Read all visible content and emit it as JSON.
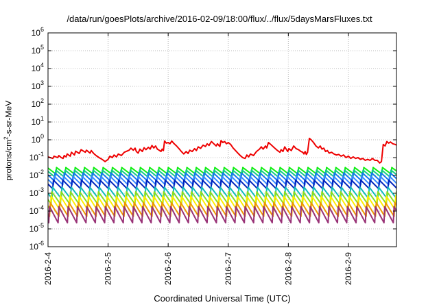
{
  "chart_data": {
    "type": "line",
    "title": "/data/run/goesPlots/archive/2016-02-09/18:00/flux/../flux/5daysMarsFluxes.txt",
    "xlabel": "Coordinated Universal Time (UTC)",
    "ylabel": {
      "pre": "protons/cm",
      "sup": "2",
      "post": "-s-sr-MeV"
    },
    "yscale": "log",
    "ylim": [
      1e-06,
      1000000.0
    ],
    "xlim": [
      0,
      5.8
    ],
    "grid": true,
    "x_ticks": [
      {
        "x": 0,
        "label": "2016-2-4"
      },
      {
        "x": 1,
        "label": "2016-2-5"
      },
      {
        "x": 2,
        "label": "2016-2-6"
      },
      {
        "x": 3,
        "label": "2016-2-7"
      },
      {
        "x": 4,
        "label": "2016-2-8"
      },
      {
        "x": 5,
        "label": "2016-2-9"
      }
    ],
    "y_ticks": [
      {
        "exp": -6,
        "base": "10",
        "sup": "-6"
      },
      {
        "exp": -5,
        "base": "10",
        "sup": "-5"
      },
      {
        "exp": -4,
        "base": "10",
        "sup": "-4"
      },
      {
        "exp": -3,
        "base": "10",
        "sup": "-3"
      },
      {
        "exp": -2,
        "base": "10",
        "sup": "-2"
      },
      {
        "exp": -1,
        "base": "10",
        "sup": "-1"
      },
      {
        "exp": 0,
        "base": "10",
        "sup": "0"
      },
      {
        "exp": 1,
        "base": "10",
        "sup": "1"
      },
      {
        "exp": 2,
        "base": "10",
        "sup": "2"
      },
      {
        "exp": 3,
        "base": "10",
        "sup": "3"
      },
      {
        "exp": 4,
        "base": "10",
        "sup": "4"
      },
      {
        "exp": 5,
        "base": "10",
        "sup": "5"
      },
      {
        "exp": 6,
        "base": "10",
        "sup": "6"
      }
    ],
    "sawtooth_period_days": 0.155,
    "series": [
      {
        "color": "#ee0000",
        "width": 2,
        "points": [
          [
            0.0,
            0.11
          ],
          [
            0.08,
            0.09
          ],
          [
            0.1,
            0.12
          ],
          [
            0.16,
            0.1
          ],
          [
            0.18,
            0.13
          ],
          [
            0.22,
            0.1
          ],
          [
            0.25,
            0.09
          ],
          [
            0.27,
            0.13
          ],
          [
            0.3,
            0.11
          ],
          [
            0.32,
            0.16
          ],
          [
            0.37,
            0.12
          ],
          [
            0.39,
            0.2
          ],
          [
            0.44,
            0.14
          ],
          [
            0.46,
            0.23
          ],
          [
            0.52,
            0.17
          ],
          [
            0.55,
            0.28
          ],
          [
            0.62,
            0.2
          ],
          [
            0.64,
            0.26
          ],
          [
            0.7,
            0.18
          ],
          [
            0.72,
            0.25
          ],
          [
            0.76,
            0.17
          ],
          [
            0.8,
            0.13
          ],
          [
            0.85,
            0.1
          ],
          [
            0.9,
            0.08
          ],
          [
            0.95,
            0.06
          ],
          [
            1.0,
            0.08
          ],
          [
            1.03,
            0.12
          ],
          [
            1.07,
            0.1
          ],
          [
            1.1,
            0.14
          ],
          [
            1.14,
            0.11
          ],
          [
            1.17,
            0.16
          ],
          [
            1.22,
            0.13
          ],
          [
            1.27,
            0.2
          ],
          [
            1.35,
            0.26
          ],
          [
            1.38,
            0.34
          ],
          [
            1.42,
            0.26
          ],
          [
            1.45,
            0.34
          ],
          [
            1.47,
            0.22
          ],
          [
            1.5,
            0.18
          ],
          [
            1.53,
            0.3
          ],
          [
            1.57,
            0.22
          ],
          [
            1.6,
            0.36
          ],
          [
            1.63,
            0.28
          ],
          [
            1.67,
            0.38
          ],
          [
            1.7,
            0.3
          ],
          [
            1.73,
            0.48
          ],
          [
            1.76,
            0.35
          ],
          [
            1.79,
            0.45
          ],
          [
            1.82,
            0.3
          ],
          [
            1.85,
            0.26
          ],
          [
            1.88,
            0.22
          ],
          [
            1.9,
            0.3
          ],
          [
            1.92,
            0.25
          ],
          [
            1.94,
            0.85
          ],
          [
            1.97,
            0.65
          ],
          [
            2.0,
            0.7
          ],
          [
            2.03,
            0.6
          ],
          [
            2.06,
            0.85
          ],
          [
            2.1,
            0.6
          ],
          [
            2.14,
            0.45
          ],
          [
            2.18,
            0.32
          ],
          [
            2.22,
            0.22
          ],
          [
            2.26,
            0.16
          ],
          [
            2.3,
            0.22
          ],
          [
            2.33,
            0.17
          ],
          [
            2.36,
            0.26
          ],
          [
            2.4,
            0.22
          ],
          [
            2.44,
            0.32
          ],
          [
            2.47,
            0.25
          ],
          [
            2.5,
            0.4
          ],
          [
            2.54,
            0.33
          ],
          [
            2.58,
            0.5
          ],
          [
            2.62,
            0.42
          ],
          [
            2.65,
            0.6
          ],
          [
            2.68,
            0.48
          ],
          [
            2.72,
            0.8
          ],
          [
            2.76,
            0.6
          ],
          [
            2.8,
            0.45
          ],
          [
            2.82,
            0.6
          ],
          [
            2.86,
            0.42
          ],
          [
            2.88,
            0.9
          ],
          [
            2.91,
            0.7
          ],
          [
            2.94,
            0.8
          ],
          [
            2.97,
            0.6
          ],
          [
            3.0,
            0.7
          ],
          [
            3.04,
            0.55
          ],
          [
            3.08,
            0.35
          ],
          [
            3.12,
            0.25
          ],
          [
            3.16,
            0.18
          ],
          [
            3.2,
            0.13
          ],
          [
            3.24,
            0.1
          ],
          [
            3.28,
            0.09
          ],
          [
            3.31,
            0.14
          ],
          [
            3.34,
            0.11
          ],
          [
            3.37,
            0.16
          ],
          [
            3.42,
            0.13
          ],
          [
            3.47,
            0.22
          ],
          [
            3.52,
            0.3
          ],
          [
            3.55,
            0.4
          ],
          [
            3.58,
            0.3
          ],
          [
            3.62,
            0.45
          ],
          [
            3.64,
            0.35
          ],
          [
            3.67,
            0.7
          ],
          [
            3.72,
            0.5
          ],
          [
            3.77,
            0.35
          ],
          [
            3.82,
            0.25
          ],
          [
            3.86,
            0.2
          ],
          [
            3.88,
            0.28
          ],
          [
            3.91,
            0.22
          ],
          [
            3.94,
            0.4
          ],
          [
            3.97,
            0.28
          ],
          [
            3.99,
            0.22
          ],
          [
            4.01,
            0.32
          ],
          [
            4.05,
            0.25
          ],
          [
            4.09,
            0.45
          ],
          [
            4.13,
            0.32
          ],
          [
            4.17,
            0.28
          ],
          [
            4.21,
            0.22
          ],
          [
            4.24,
            0.2
          ],
          [
            4.26,
            0.16
          ],
          [
            4.28,
            0.22
          ],
          [
            4.3,
            0.15
          ],
          [
            4.32,
            0.2
          ],
          [
            4.35,
            1.2
          ],
          [
            4.38,
            1.0
          ],
          [
            4.42,
            0.7
          ],
          [
            4.46,
            0.45
          ],
          [
            4.5,
            0.35
          ],
          [
            4.53,
            0.45
          ],
          [
            4.56,
            0.3
          ],
          [
            4.59,
            0.34
          ],
          [
            4.62,
            0.22
          ],
          [
            4.65,
            0.25
          ],
          [
            4.68,
            0.18
          ],
          [
            4.72,
            0.2
          ],
          [
            4.76,
            0.16
          ],
          [
            4.8,
            0.14
          ],
          [
            4.84,
            0.15
          ],
          [
            4.88,
            0.12
          ],
          [
            4.92,
            0.14
          ],
          [
            4.96,
            0.1
          ],
          [
            5.0,
            0.12
          ],
          [
            5.04,
            0.09
          ],
          [
            5.08,
            0.11
          ],
          [
            5.12,
            0.09
          ],
          [
            5.16,
            0.1
          ],
          [
            5.2,
            0.08
          ],
          [
            5.24,
            0.09
          ],
          [
            5.28,
            0.07
          ],
          [
            5.32,
            0.08
          ],
          [
            5.36,
            0.07
          ],
          [
            5.4,
            0.09
          ],
          [
            5.44,
            0.07
          ],
          [
            5.48,
            0.07
          ],
          [
            5.52,
            0.05
          ],
          [
            5.55,
            0.06
          ],
          [
            5.58,
            0.55
          ],
          [
            5.61,
            0.45
          ],
          [
            5.64,
            0.8
          ],
          [
            5.67,
            0.65
          ],
          [
            5.7,
            0.75
          ],
          [
            5.74,
            0.6
          ],
          [
            5.78,
            0.55
          ],
          [
            5.8,
            0.5
          ]
        ]
      },
      {
        "color": "#11ee11",
        "width": 2,
        "peak": 0.028,
        "trough": 0.012
      },
      {
        "color": "#11cc88",
        "width": 2,
        "peak": 0.02,
        "trough": 0.008
      },
      {
        "color": "#1177ee",
        "width": 2,
        "peak": 0.014,
        "trough": 0.005
      },
      {
        "color": "#3388ff",
        "width": 2,
        "peak": 0.009,
        "trough": 0.003
      },
      {
        "color": "#0022bb",
        "width": 2,
        "peak": 0.0055,
        "trough": 0.0018
      },
      {
        "color": "#11bbbb",
        "width": 2,
        "peak": 0.0022,
        "trough": 0.0005
      },
      {
        "color": "#88dd22",
        "width": 2,
        "peak": 0.0012,
        "trough": 0.00025
      },
      {
        "color": "#ffee00",
        "width": 2,
        "peak": 0.0007,
        "trough": 0.00012
      },
      {
        "color": "#ee9900",
        "width": 2,
        "peak": 0.0003,
        "trough": 5e-05
      },
      {
        "color": "#993377",
        "width": 2,
        "peak": 0.00018,
        "trough": 2.2e-05
      }
    ]
  }
}
